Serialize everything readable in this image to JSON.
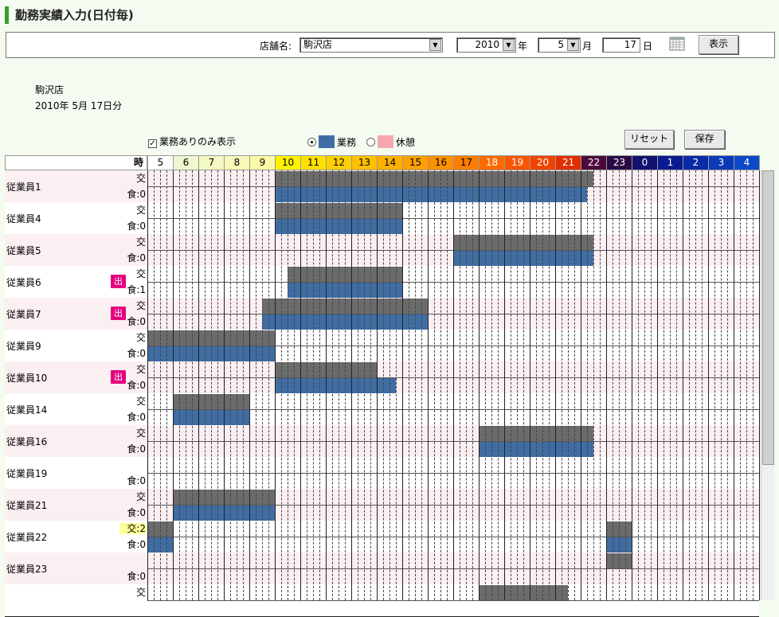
{
  "title": "勤務実績入力(日付毎)",
  "filter": {
    "store_label": "店舗名:",
    "store_value": "駒沢店",
    "year_value": "2010",
    "year_unit": "年",
    "month_value": "5",
    "month_unit": "月",
    "day_value": "17",
    "day_unit": "日",
    "show_button": "表示"
  },
  "info": {
    "store": "駒沢店",
    "date_text": "2010年 5月 17日分"
  },
  "options": {
    "only_with_work": "業務ありのみ表示",
    "only_with_work_checked": true,
    "legend_work": "業務",
    "legend_break": "休憩",
    "selected_mode": "work",
    "reset_button": "リセット",
    "save_button": "保存"
  },
  "colors": {
    "work": "#3f6da3",
    "break": "#f5a8b0",
    "gray_bar": "#6b6b6b",
    "accent": "#3b9a2c",
    "badge": "#e4007f"
  },
  "grid": {
    "hour_header_label": "時",
    "hours": [
      {
        "label": "5",
        "bg": "#ffffff",
        "fg": "#000000"
      },
      {
        "label": "6",
        "bg": "#eef7cf",
        "fg": "#000000"
      },
      {
        "label": "7",
        "bg": "#f4f8c2",
        "fg": "#000000"
      },
      {
        "label": "8",
        "bg": "#f8f9b8",
        "fg": "#000000"
      },
      {
        "label": "9",
        "bg": "#fafaa6",
        "fg": "#000000"
      },
      {
        "label": "10",
        "bg": "#fff200",
        "fg": "#000000"
      },
      {
        "label": "11",
        "bg": "#ffe000",
        "fg": "#000000"
      },
      {
        "label": "12",
        "bg": "#ffd000",
        "fg": "#000000"
      },
      {
        "label": "13",
        "bg": "#ffc000",
        "fg": "#000000"
      },
      {
        "label": "14",
        "bg": "#ffb000",
        "fg": "#000000"
      },
      {
        "label": "15",
        "bg": "#ffa000",
        "fg": "#000000"
      },
      {
        "label": "16",
        "bg": "#ff9000",
        "fg": "#000000"
      },
      {
        "label": "17",
        "bg": "#ff7e00",
        "fg": "#000000"
      },
      {
        "label": "18",
        "bg": "#ff6a00",
        "fg": "#ffffff"
      },
      {
        "label": "19",
        "bg": "#fa5500",
        "fg": "#ffffff"
      },
      {
        "label": "20",
        "bg": "#f04400",
        "fg": "#ffffff"
      },
      {
        "label": "21",
        "bg": "#e03000",
        "fg": "#ffffff"
      },
      {
        "label": "22",
        "bg": "#4b0a3a",
        "fg": "#ffffff"
      },
      {
        "label": "23",
        "bg": "#2a0a45",
        "fg": "#ffffff"
      },
      {
        "label": "0",
        "bg": "#121070",
        "fg": "#ffffff"
      },
      {
        "label": "1",
        "bg": "#0a1a90",
        "fg": "#ffffff"
      },
      {
        "label": "2",
        "bg": "#0a2aa6",
        "fg": "#ffffff"
      },
      {
        "label": "3",
        "bg": "#0a3ab8",
        "fg": "#ffffff"
      },
      {
        "label": "4",
        "bg": "#0a4ac8",
        "fg": "#ffffff"
      }
    ],
    "employees": [
      {
        "name": "従業員1",
        "top_label": "交",
        "bottom_label": "食:0",
        "badge": "",
        "bg": "pink",
        "gray": [
          [
            10.0,
            22.5
          ]
        ],
        "blue": [
          [
            10.0,
            22.25
          ]
        ]
      },
      {
        "name": "従業員4",
        "top_label": "交",
        "bottom_label": "食:0",
        "badge": "",
        "bg": "white",
        "gray": [
          [
            10.0,
            15.0
          ]
        ],
        "blue": [
          [
            10.0,
            15.0
          ]
        ]
      },
      {
        "name": "従業員5",
        "top_label": "交",
        "bottom_label": "食:0",
        "badge": "",
        "bg": "pink",
        "gray": [
          [
            17.0,
            22.5
          ]
        ],
        "blue": [
          [
            17.0,
            22.5
          ]
        ]
      },
      {
        "name": "従業員6",
        "top_label": "交",
        "bottom_label": "食:1",
        "badge": "出",
        "bg": "white",
        "gray": [
          [
            10.5,
            15.0
          ]
        ],
        "blue": [
          [
            10.5,
            15.0
          ]
        ]
      },
      {
        "name": "従業員7",
        "top_label": "交",
        "bottom_label": "食:0",
        "badge": "出",
        "bg": "pink",
        "gray": [
          [
            9.5,
            16.0
          ]
        ],
        "blue": [
          [
            9.5,
            16.0
          ]
        ]
      },
      {
        "name": "従業員9",
        "top_label": "交",
        "bottom_label": "食:0",
        "badge": "",
        "bg": "white",
        "gray": [
          [
            5.0,
            10.0
          ]
        ],
        "blue": [
          [
            5.0,
            10.0
          ]
        ]
      },
      {
        "name": "従業員10",
        "top_label": "交",
        "bottom_label": "食:0",
        "badge": "出",
        "bg": "pink",
        "gray": [
          [
            10.0,
            14.0
          ]
        ],
        "blue": [
          [
            10.0,
            14.75
          ]
        ]
      },
      {
        "name": "従業員14",
        "top_label": "交",
        "bottom_label": "食:0",
        "badge": "",
        "bg": "white",
        "gray": [
          [
            6.0,
            9.0
          ]
        ],
        "blue": [
          [
            6.0,
            9.0
          ]
        ]
      },
      {
        "name": "従業員16",
        "top_label": "交",
        "bottom_label": "食:0",
        "badge": "",
        "bg": "pink",
        "gray": [
          [
            18.0,
            22.5
          ]
        ],
        "blue": [
          [
            18.0,
            22.5
          ]
        ]
      },
      {
        "name": "従業員19",
        "top_label": "",
        "bottom_label": "食:0",
        "badge": "",
        "bg": "white",
        "gray": [],
        "blue": []
      },
      {
        "name": "従業員21",
        "top_label": "交",
        "bottom_label": "食:0",
        "badge": "",
        "bg": "pink",
        "gray": [
          [
            6.0,
            10.0
          ]
        ],
        "blue": [
          [
            6.0,
            10.0
          ]
        ]
      },
      {
        "name": "従業員22",
        "top_label": "交:2",
        "bottom_label": "食:0",
        "badge": "",
        "bg": "white",
        "top_highlight": true,
        "gray": [
          [
            5.0,
            6.0
          ],
          [
            23.0,
            24.0
          ]
        ],
        "blue": [
          [
            5.0,
            6.0
          ],
          [
            23.0,
            24.0
          ]
        ]
      },
      {
        "name": "従業員23",
        "top_label": "",
        "bottom_label": "食:0",
        "badge": "",
        "bg": "pink",
        "gray": [
          [
            23.0,
            24.0
          ]
        ],
        "blue": []
      },
      {
        "name": "",
        "top_label": "交",
        "bottom_label": "",
        "badge": "",
        "bg": "white",
        "gray": [
          [
            18.0,
            21.5
          ]
        ],
        "blue": []
      }
    ]
  }
}
